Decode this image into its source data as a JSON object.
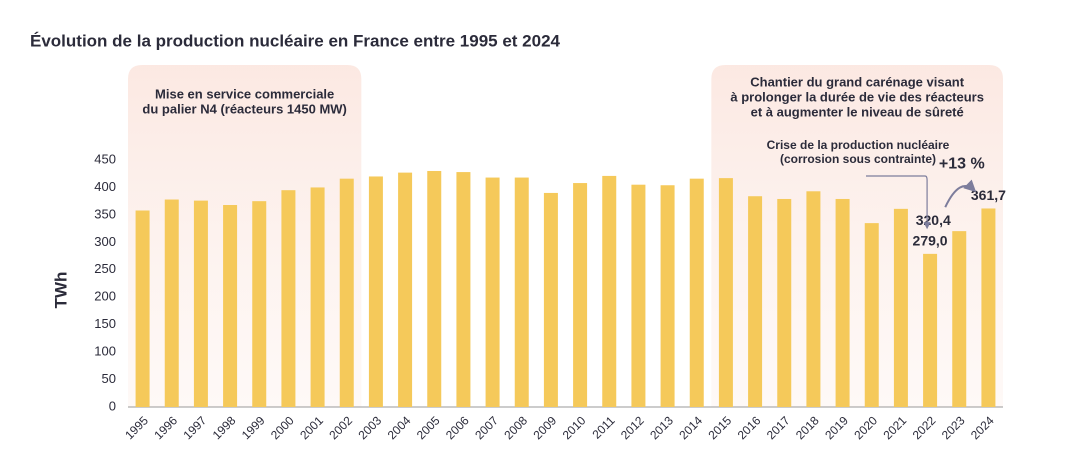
{
  "chart_data": {
    "type": "bar",
    "title": "Évolution de la production nucléaire en France entre 1995 et 2024",
    "y_label": "TWh",
    "categories": [
      "1995",
      "1996",
      "1997",
      "1998",
      "1999",
      "2000",
      "2001",
      "2002",
      "2003",
      "2004",
      "2005",
      "2006",
      "2007",
      "2008",
      "2009",
      "2010",
      "2011",
      "2012",
      "2013",
      "2014",
      "2015",
      "2016",
      "2017",
      "2018",
      "2019",
      "2020",
      "2021",
      "2022",
      "2023",
      "2024"
    ],
    "values": [
      358,
      378,
      376,
      368,
      375,
      395,
      400,
      416,
      420,
      427,
      430,
      428,
      418,
      418,
      390,
      408,
      421,
      405,
      404,
      416,
      417,
      384,
      379,
      393,
      379,
      335,
      361,
      279.0,
      320.4,
      361.7
    ],
    "value_labels": [
      null,
      null,
      null,
      null,
      null,
      null,
      null,
      null,
      null,
      null,
      null,
      null,
      null,
      null,
      null,
      null,
      null,
      null,
      null,
      null,
      null,
      null,
      null,
      null,
      null,
      null,
      null,
      "279,0",
      "320,4",
      "361,7"
    ],
    "color": "#f5c95a",
    "ylim": [
      0,
      450
    ],
    "yticks": [
      0,
      50,
      100,
      150,
      200,
      250,
      300,
      350,
      400,
      450
    ],
    "regions": [
      {
        "start": "1995",
        "end": "2002",
        "text": [
          "Mise en service commerciale",
          "du palier N4 (réacteurs 1450 MW)"
        ]
      },
      {
        "start": "2015",
        "end": "2024",
        "text": [
          "Chantier du grand carénage visant",
          "à prolonger la durée de vie des réacteurs",
          "et à augmenter le niveau de sûreté"
        ]
      }
    ],
    "annotations": [
      {
        "target": "2022",
        "text": [
          "Crise de la production nucléaire",
          "(corrosion sous contrainte)"
        ]
      },
      {
        "from": "2023",
        "to": "2024",
        "text": "+13 %"
      }
    ]
  }
}
